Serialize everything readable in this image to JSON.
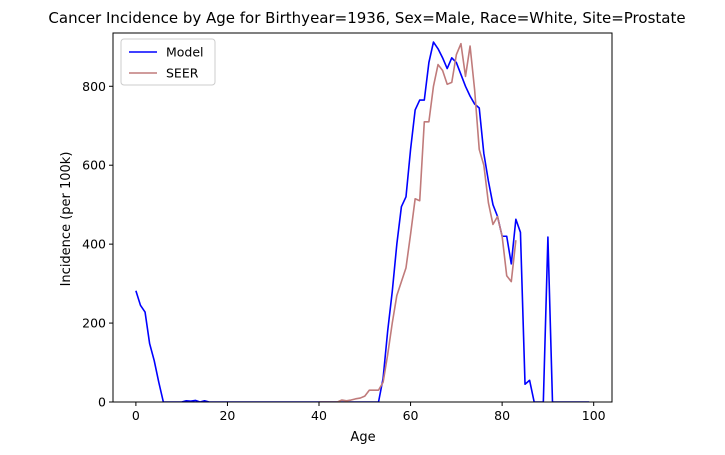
{
  "chart_data": {
    "type": "line",
    "title": "Cancer Incidence by Age for Birthyear=1936, Sex=Male, Race=White, Site=Prostate",
    "xlabel": "Age",
    "ylabel": "Incidence (per 100k)",
    "xlim": [
      -5,
      104
    ],
    "ylim": [
      0,
      935
    ],
    "xticks": [
      0,
      20,
      40,
      60,
      80,
      100
    ],
    "yticks": [
      0,
      200,
      400,
      600,
      800
    ],
    "grid": false,
    "legend_position": "top-left",
    "series": [
      {
        "name": "Model",
        "color": "#0000ff",
        "x": [
          0,
          1,
          2,
          3,
          4,
          5,
          6,
          7,
          8,
          9,
          10,
          11,
          12,
          13,
          14,
          15,
          16,
          17,
          18,
          19,
          20,
          21,
          22,
          23,
          24,
          25,
          26,
          27,
          28,
          29,
          30,
          31,
          32,
          33,
          34,
          35,
          36,
          37,
          38,
          39,
          40,
          41,
          42,
          43,
          44,
          45,
          46,
          47,
          48,
          49,
          50,
          51,
          52,
          53,
          54,
          55,
          56,
          57,
          58,
          59,
          60,
          61,
          62,
          63,
          64,
          65,
          66,
          67,
          68,
          69,
          70,
          71,
          72,
          73,
          74,
          75,
          76,
          77,
          78,
          79,
          80,
          81,
          82,
          83,
          84,
          85,
          86,
          87,
          88,
          89,
          90,
          91,
          92,
          93,
          94,
          95,
          96,
          97,
          98,
          99
        ],
        "y": [
          282,
          245,
          228,
          148,
          105,
          50,
          0,
          0,
          0,
          0,
          0,
          3,
          2,
          4,
          0,
          3,
          0,
          0,
          0,
          0,
          0,
          0,
          0,
          0,
          0,
          0,
          0,
          0,
          0,
          0,
          0,
          0,
          0,
          0,
          0,
          0,
          0,
          0,
          0,
          0,
          0,
          0,
          0,
          0,
          0,
          0,
          0,
          0,
          0,
          0,
          0,
          0,
          0,
          0,
          60,
          180,
          280,
          400,
          495,
          520,
          640,
          740,
          765,
          765,
          860,
          912,
          895,
          872,
          845,
          872,
          860,
          830,
          800,
          775,
          755,
          745,
          630,
          560,
          500,
          470,
          420,
          420,
          350,
          463,
          430,
          45,
          55,
          0,
          0,
          0,
          418,
          0,
          0,
          0,
          0,
          0,
          0,
          0,
          0,
          0
        ]
      },
      {
        "name": "SEER",
        "color": "#c07b7b",
        "x": [
          40,
          41,
          42,
          43,
          44,
          45,
          46,
          47,
          48,
          49,
          50,
          51,
          52,
          53,
          54,
          55,
          56,
          57,
          58,
          59,
          60,
          61,
          62,
          63,
          64,
          65,
          66,
          67,
          68,
          69,
          70,
          71,
          72,
          73,
          74,
          75,
          76,
          77,
          78,
          79,
          80,
          81,
          82,
          83
        ],
        "y": [
          0,
          0,
          0,
          0,
          0,
          5,
          3,
          5,
          8,
          10,
          15,
          30,
          30,
          30,
          50,
          120,
          200,
          270,
          305,
          340,
          425,
          515,
          510,
          710,
          710,
          800,
          855,
          840,
          805,
          810,
          880,
          908,
          825,
          902,
          790,
          640,
          600,
          505,
          450,
          470,
          420,
          320,
          305,
          410
        ]
      }
    ]
  }
}
